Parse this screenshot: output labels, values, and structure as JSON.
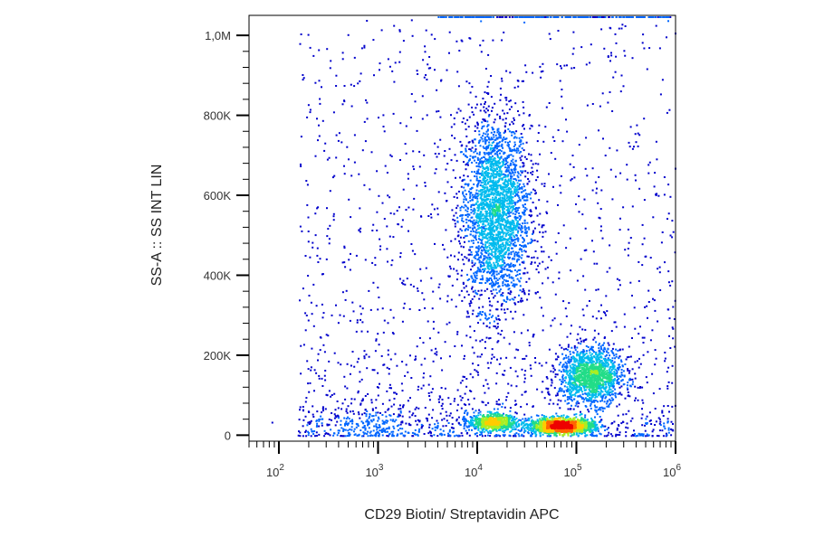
{
  "chart_data": {
    "type": "scatter",
    "subtype": "flow-cytometry-density-dot-plot",
    "title": "",
    "xlabel": "CD29 Biotin/ Streptavidin APC",
    "ylabel": "SS-A :: SS INT LIN",
    "x_scale": "log",
    "y_scale": "linear",
    "xlim": [
      50,
      1000000
    ],
    "ylim": [
      -15000,
      1050000
    ],
    "x_ticks": [
      {
        "value": 100,
        "base": "10",
        "exp": "2"
      },
      {
        "value": 1000,
        "base": "10",
        "exp": "3"
      },
      {
        "value": 10000,
        "base": "10",
        "exp": "4"
      },
      {
        "value": 100000,
        "base": "10",
        "exp": "5"
      },
      {
        "value": 1000000,
        "base": "10",
        "exp": "6"
      }
    ],
    "y_ticks": [
      {
        "value": 0,
        "label": "0"
      },
      {
        "value": 200000,
        "label": "200K"
      },
      {
        "value": 400000,
        "label": "400K"
      },
      {
        "value": 600000,
        "label": "600K"
      },
      {
        "value": 800000,
        "label": "800K"
      },
      {
        "value": 1000000,
        "label": "1,0M"
      }
    ],
    "grid": false,
    "legend": "none",
    "color_scale": [
      "#0000cc",
      "#0066ff",
      "#00bbee",
      "#22dd88",
      "#aaee22",
      "#ffcc00",
      "#ff6600",
      "#ee0000"
    ],
    "populations": [
      {
        "center_x": 15000,
        "center_y": 560000,
        "spread_log_x": 0.17,
        "spread_y": 120000,
        "density": 1.0
      },
      {
        "center_x": 140000,
        "center_y": 150000,
        "spread_log_x": 0.16,
        "spread_y": 35000,
        "density": 1.0
      },
      {
        "center_x": 70000,
        "center_y": 25000,
        "spread_log_x": 0.16,
        "spread_y": 9000,
        "density": 1.0
      },
      {
        "center_x": 14000,
        "center_y": 35000,
        "spread_log_x": 0.12,
        "spread_y": 10000,
        "density": 0.8
      },
      {
        "center_x": 900,
        "center_y": 30000,
        "spread_log_x": 0.35,
        "spread_y": 20000,
        "density": 0.4
      }
    ]
  }
}
